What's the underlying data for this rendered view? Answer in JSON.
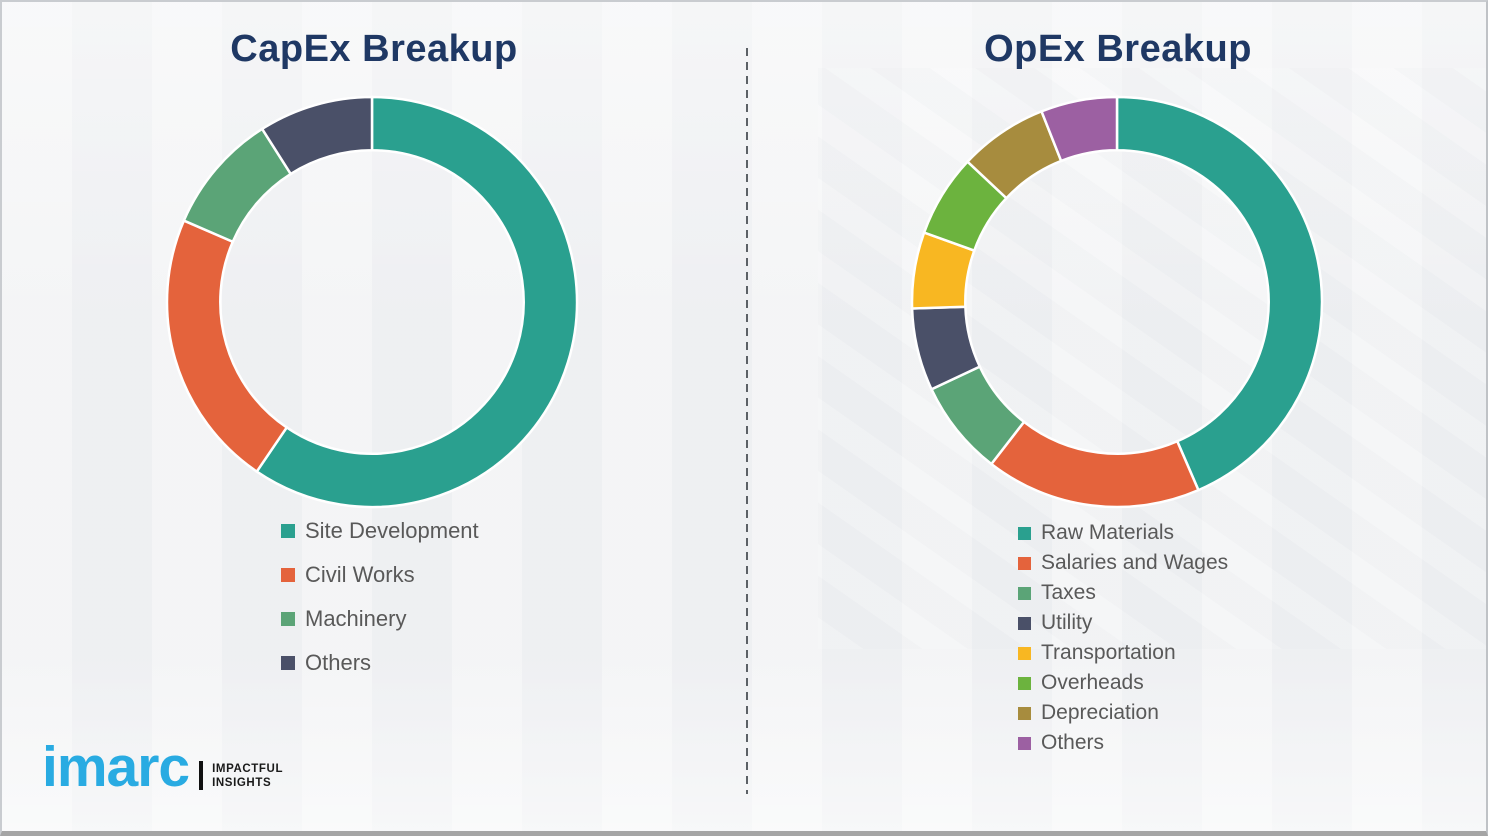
{
  "colors": {
    "background": "#f1f2f4",
    "title_text": "#1f3864",
    "legend_text": "#595959",
    "divider": "#5c6166",
    "segment_gap": "#ffffff",
    "bottom_border": "#a5a5a5"
  },
  "chart_data": [
    {
      "type": "pie",
      "subtype": "donut",
      "title": "CapEx Breakup",
      "start_angle": 0,
      "direction": "clockwise",
      "donut_hole_ratio": 0.74,
      "legend_position": "bottom-left",
      "labels": [
        "Site Development",
        "Civil Works",
        "Machinery",
        "Others"
      ],
      "values": [
        59.5,
        22,
        9.5,
        9
      ],
      "colors": [
        "#2aa08f",
        "#e4633c",
        "#5ba477",
        "#4a5068"
      ]
    },
    {
      "type": "pie",
      "subtype": "donut",
      "title": "OpEx Breakup",
      "start_angle": 0,
      "direction": "clockwise",
      "donut_hole_ratio": 0.74,
      "legend_position": "bottom-left",
      "labels": [
        "Raw Materials",
        "Salaries and Wages",
        "Taxes",
        "Utility",
        "Transportation",
        "Overheads",
        "Depreciation",
        "Others"
      ],
      "values": [
        43.5,
        17,
        7.5,
        6.5,
        6,
        6.5,
        7,
        6
      ],
      "colors": [
        "#2aa08f",
        "#e4633c",
        "#5ba477",
        "#4a5068",
        "#f8b722",
        "#6cb33e",
        "#a78c3e",
        "#9c60a2"
      ]
    }
  ],
  "logo": {
    "brand": "imarc",
    "tagline_line1": "IMPACTFUL",
    "tagline_line2": "INSIGHTS",
    "brand_color": "#29abe2"
  }
}
